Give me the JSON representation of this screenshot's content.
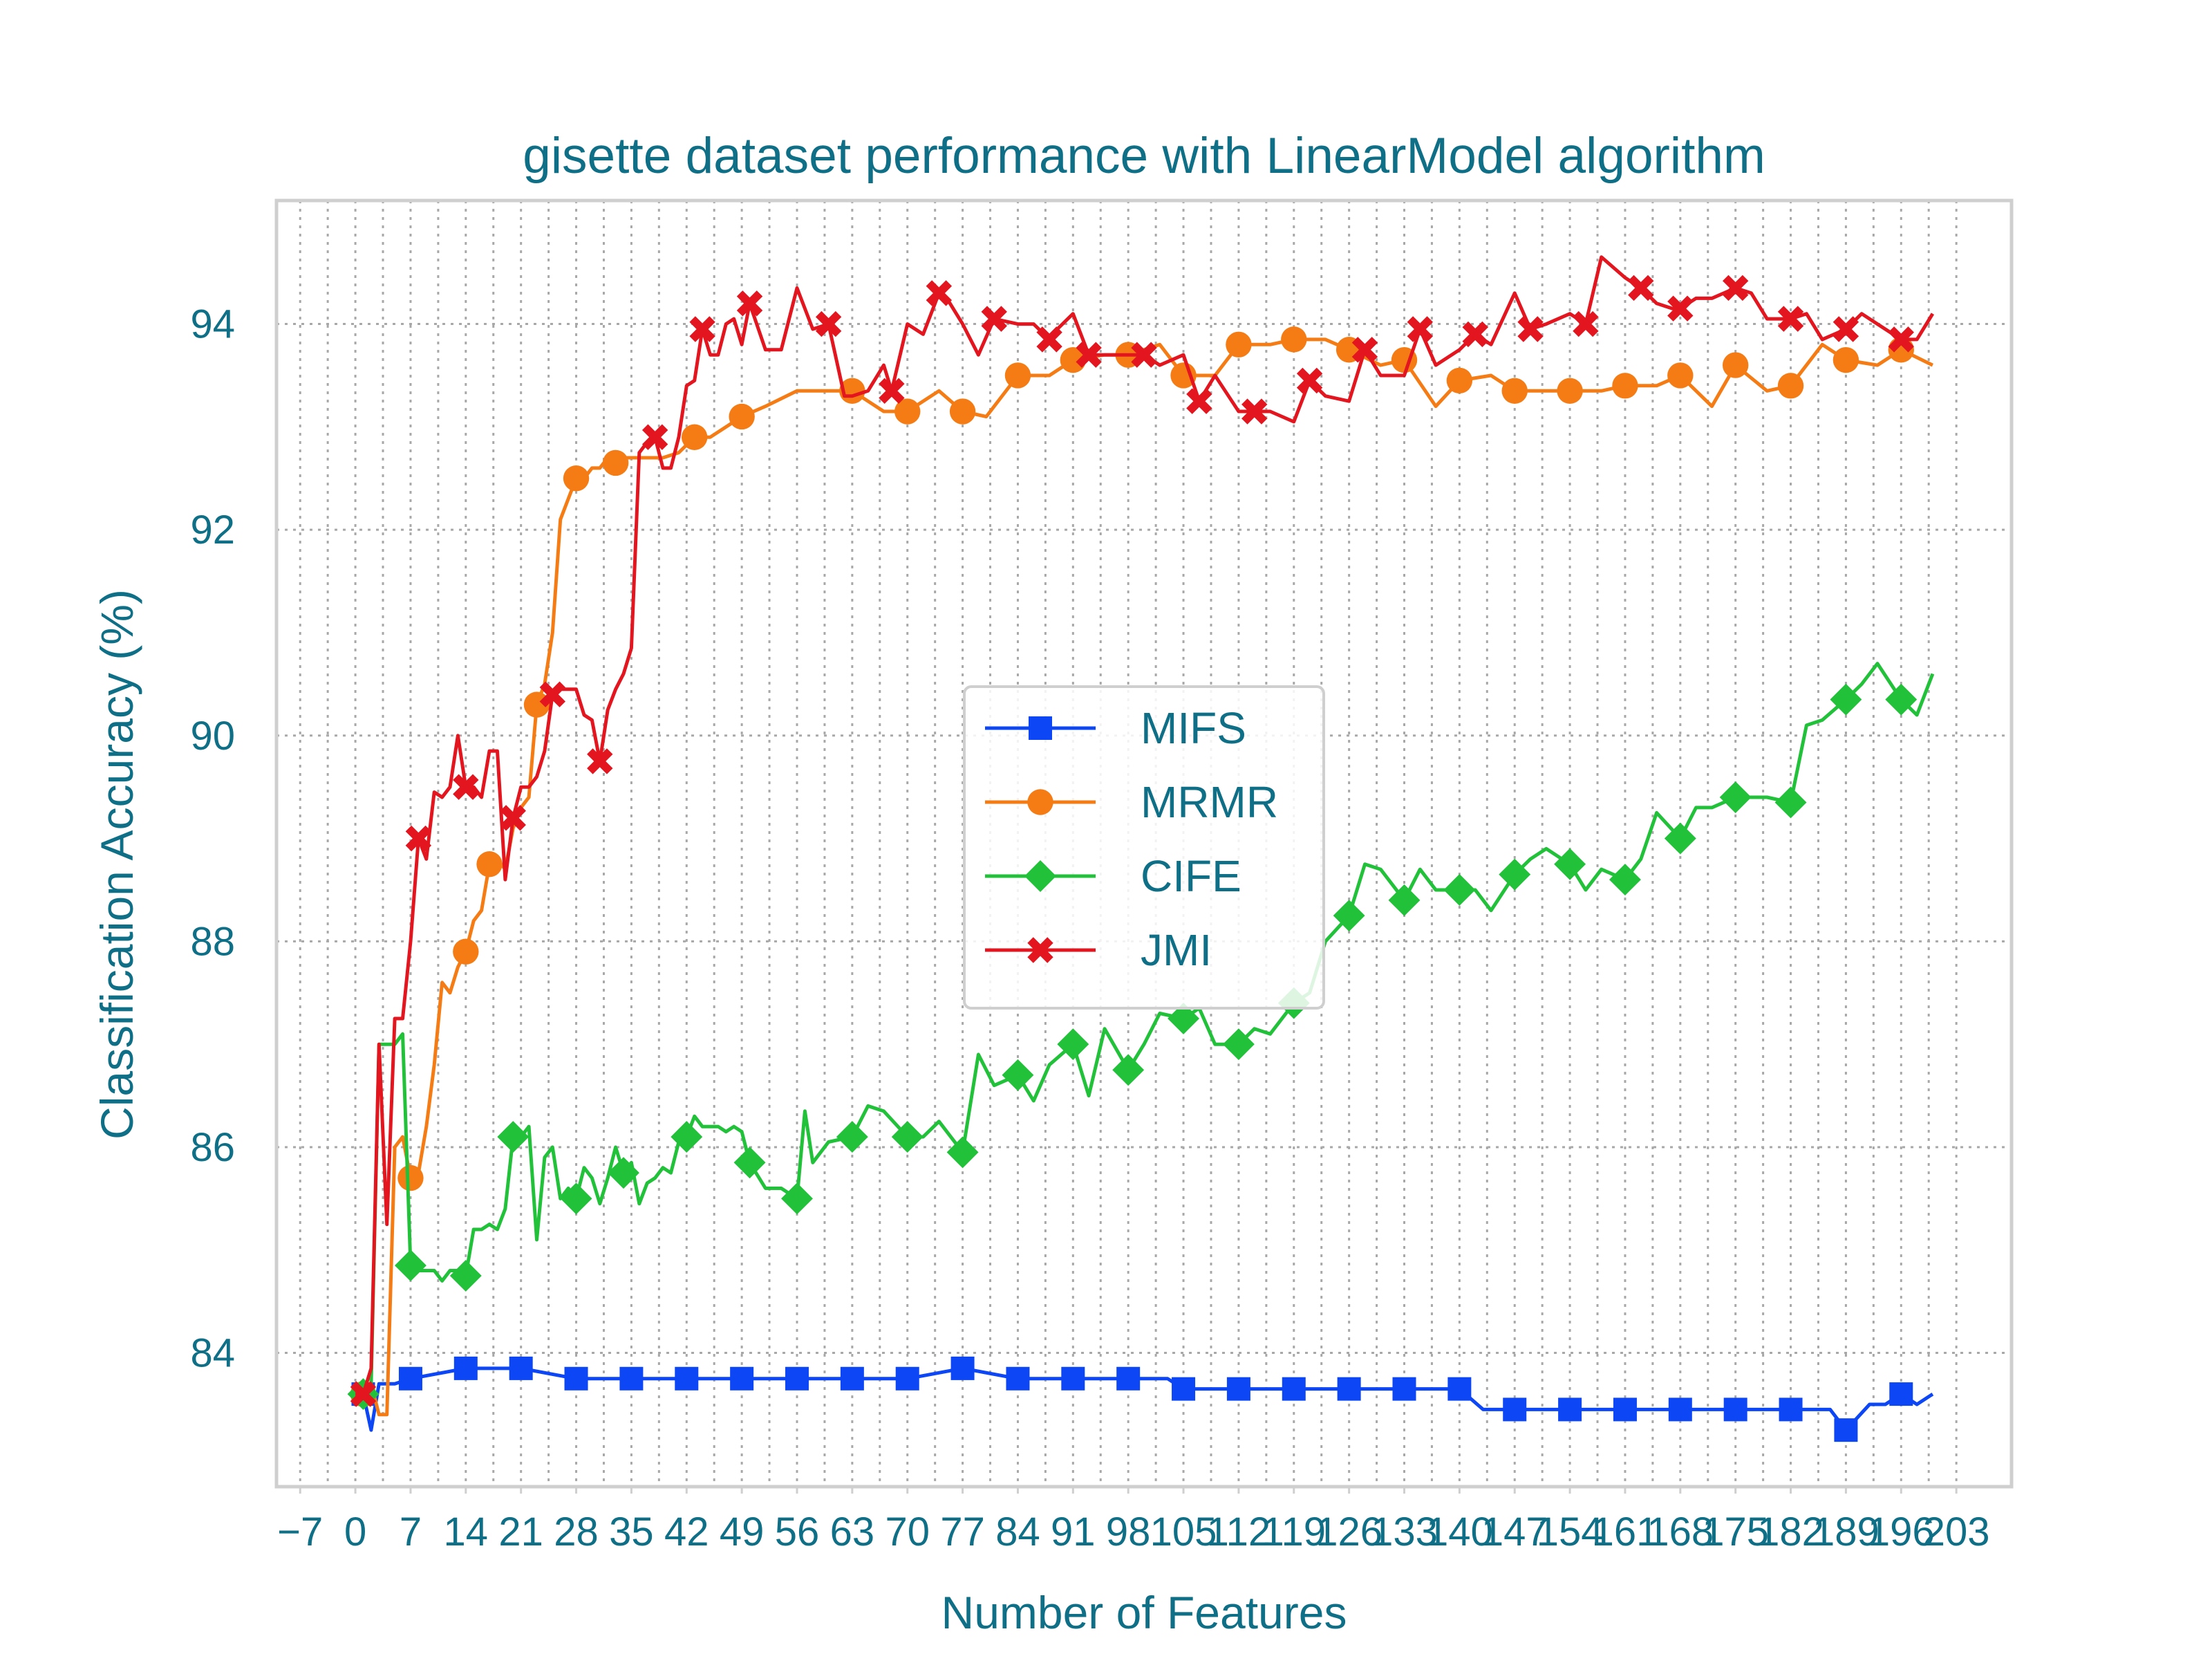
{
  "colors": {
    "text": "#0e6f86",
    "mifs": "#0d47f5",
    "mrmr": "#f57c14",
    "cife": "#21c13a",
    "jmi": "#e31620",
    "grid": "#a8a8a8",
    "frame": "#cfcfcf"
  },
  "chart_data": {
    "type": "line",
    "title": "gisette dataset performance with LinearModel algorithm",
    "xlabel": "Number of Features",
    "ylabel": "Classification Accuracy (%)",
    "xlim": [
      -10,
      210
    ],
    "ylim": [
      82.7,
      95.2
    ],
    "grid": true,
    "grid_style": "dotted",
    "legend_position": "center",
    "xticks": [
      -7,
      0,
      7,
      14,
      21,
      28,
      35,
      42,
      49,
      56,
      63,
      70,
      77,
      84,
      91,
      98,
      105,
      112,
      119,
      126,
      133,
      140,
      147,
      154,
      161,
      168,
      175,
      182,
      189,
      196,
      203
    ],
    "xtick_labels": [
      "−7",
      "0",
      "7",
      "14",
      "21",
      "28",
      "35",
      "42",
      "49",
      "56",
      "63",
      "70",
      "77",
      "84",
      "91",
      "98",
      "105",
      "112",
      "119",
      "126",
      "133",
      "140",
      "147",
      "154",
      "161",
      "168",
      "175",
      "182",
      "189",
      "196",
      "203"
    ],
    "yticks": [
      84,
      86,
      88,
      90,
      92,
      94
    ],
    "ytick_labels": [
      "84",
      "86",
      "88",
      "90",
      "92",
      "94"
    ],
    "series": [
      {
        "name": "MIFS",
        "color_key": "mifs",
        "marker": "square",
        "x": [
          0,
          1,
          2,
          3,
          4,
          5,
          7,
          14,
          21,
          28,
          35,
          42,
          49,
          56,
          63,
          70,
          77,
          84,
          91,
          98,
          103,
          105,
          112,
          119,
          126,
          133,
          140,
          143,
          147,
          154,
          161,
          168,
          175,
          182,
          187,
          189,
          192,
          194,
          196,
          198,
          200
        ],
        "y": [
          83.6,
          83.6,
          83.25,
          83.7,
          83.7,
          83.7,
          83.75,
          83.85,
          83.85,
          83.75,
          83.75,
          83.75,
          83.75,
          83.75,
          83.75,
          83.75,
          83.85,
          83.75,
          83.75,
          83.75,
          83.75,
          83.65,
          83.65,
          83.65,
          83.65,
          83.65,
          83.65,
          83.45,
          83.45,
          83.45,
          83.45,
          83.45,
          83.45,
          83.45,
          83.45,
          83.25,
          83.5,
          83.5,
          83.6,
          83.5,
          83.6
        ],
        "marker_indices": [
          1,
          6,
          7,
          8,
          9,
          10,
          11,
          12,
          13,
          14,
          15,
          16,
          17,
          18,
          19,
          21,
          22,
          23,
          24,
          25,
          26,
          28,
          29,
          30,
          31,
          32,
          33,
          35,
          38
        ]
      },
      {
        "name": "MRMR",
        "color_key": "mrmr",
        "marker": "circle",
        "x": [
          0,
          1,
          2,
          3,
          4,
          5,
          6,
          7,
          8,
          9,
          10,
          11,
          12,
          13,
          14,
          15,
          16,
          17,
          18,
          19,
          20,
          21,
          22,
          23,
          24,
          25,
          26,
          27,
          28,
          29,
          30,
          31,
          32,
          33,
          34,
          35,
          37,
          39,
          41,
          43,
          45,
          47,
          49,
          52,
          56,
          60,
          63,
          67,
          70,
          74,
          77,
          80,
          84,
          88,
          91,
          95,
          98,
          102,
          105,
          109,
          112,
          116,
          119,
          123,
          126,
          130,
          133,
          137,
          140,
          144,
          147,
          151,
          154,
          158,
          161,
          165,
          168,
          172,
          175,
          179,
          182,
          186,
          189,
          193,
          196,
          200
        ],
        "y": [
          83.6,
          83.6,
          83.7,
          83.4,
          83.4,
          86.0,
          86.1,
          85.7,
          85.75,
          86.2,
          86.8,
          87.6,
          87.5,
          87.75,
          87.9,
          88.2,
          88.3,
          88.75,
          88.8,
          88.7,
          89.1,
          89.3,
          89.4,
          90.3,
          90.5,
          91.0,
          92.1,
          92.3,
          92.5,
          92.5,
          92.6,
          92.6,
          92.7,
          92.65,
          92.7,
          92.7,
          92.7,
          92.7,
          92.75,
          92.9,
          92.9,
          93.0,
          93.1,
          93.2,
          93.35,
          93.35,
          93.35,
          93.15,
          93.15,
          93.35,
          93.15,
          93.1,
          93.5,
          93.5,
          93.65,
          93.7,
          93.7,
          93.8,
          93.5,
          93.5,
          93.8,
          93.8,
          93.85,
          93.85,
          93.75,
          93.6,
          93.65,
          93.2,
          93.45,
          93.5,
          93.35,
          93.35,
          93.35,
          93.35,
          93.4,
          93.4,
          93.5,
          93.2,
          93.6,
          93.35,
          93.4,
          93.8,
          93.65,
          93.6,
          93.75,
          93.6
        ],
        "marker_indices": [
          1,
          7,
          14,
          17,
          23,
          28,
          33,
          39,
          42,
          46,
          48,
          50,
          52,
          54,
          56,
          58,
          60,
          62,
          64,
          66,
          68,
          70,
          72,
          74,
          76,
          78,
          80,
          82,
          84
        ]
      },
      {
        "name": "CIFE",
        "color_key": "cife",
        "marker": "diamond",
        "x": [
          0,
          1,
          2,
          3,
          4,
          5,
          6,
          7,
          8,
          9,
          10,
          11,
          12,
          13,
          14,
          15,
          16,
          17,
          18,
          19,
          20,
          21,
          22,
          23,
          24,
          25,
          26,
          27,
          28,
          29,
          30,
          31,
          32,
          33,
          34,
          35,
          36,
          37,
          38,
          39,
          40,
          41,
          42,
          43,
          44,
          45,
          46,
          47,
          48,
          49,
          50,
          52,
          54,
          56,
          57,
          58,
          60,
          63,
          65,
          67,
          70,
          72,
          74,
          77,
          79,
          81,
          84,
          86,
          88,
          91,
          93,
          95,
          98,
          100,
          102,
          105,
          107,
          109,
          112,
          114,
          116,
          119,
          121,
          123,
          126,
          128,
          130,
          133,
          135,
          137,
          140,
          142,
          144,
          147,
          149,
          151,
          154,
          156,
          158,
          161,
          163,
          165,
          168,
          170,
          172,
          175,
          177,
          179,
          182,
          184,
          186,
          189,
          191,
          193,
          196,
          198,
          200
        ],
        "y": [
          83.6,
          83.6,
          83.7,
          87.0,
          87.0,
          87.0,
          87.1,
          84.85,
          84.8,
          84.8,
          84.8,
          84.7,
          84.8,
          84.8,
          84.75,
          85.2,
          85.2,
          85.25,
          85.2,
          85.4,
          86.1,
          86.1,
          86.2,
          85.1,
          85.9,
          86.0,
          85.5,
          85.6,
          85.5,
          85.8,
          85.7,
          85.45,
          85.7,
          86.0,
          85.75,
          85.85,
          85.45,
          85.65,
          85.7,
          85.8,
          85.75,
          86.05,
          86.1,
          86.3,
          86.2,
          86.2,
          86.2,
          86.15,
          86.2,
          86.15,
          85.85,
          85.6,
          85.6,
          85.5,
          86.35,
          85.85,
          86.05,
          86.1,
          86.4,
          86.35,
          86.1,
          86.1,
          86.25,
          85.95,
          86.9,
          86.6,
          86.7,
          86.45,
          86.8,
          87.0,
          86.5,
          87.15,
          86.75,
          87.0,
          87.3,
          87.25,
          87.35,
          87.0,
          87.0,
          87.15,
          87.1,
          87.4,
          87.5,
          88.0,
          88.25,
          88.75,
          88.7,
          88.4,
          88.7,
          88.5,
          88.5,
          88.5,
          88.3,
          88.65,
          88.8,
          88.9,
          88.75,
          88.5,
          88.7,
          88.6,
          88.8,
          89.25,
          89.0,
          89.3,
          89.3,
          89.4,
          89.4,
          89.4,
          89.35,
          90.1,
          90.15,
          90.35,
          90.5,
          90.7,
          90.35,
          90.2,
          90.6
        ],
        "marker_indices": [
          1,
          7,
          14,
          20,
          28,
          34,
          42,
          50,
          53,
          57,
          60,
          63,
          66,
          69,
          72,
          75,
          78,
          81,
          84,
          87,
          90,
          93,
          96,
          99,
          102,
          105,
          108,
          111,
          114
        ]
      },
      {
        "name": "JMI",
        "color_key": "jmi",
        "marker": "x",
        "x": [
          0,
          1,
          2,
          3,
          4,
          5,
          6,
          7,
          8,
          9,
          10,
          11,
          12,
          13,
          14,
          15,
          16,
          17,
          18,
          19,
          20,
          21,
          22,
          23,
          24,
          25,
          26,
          27,
          28,
          29,
          30,
          31,
          32,
          33,
          34,
          35,
          36,
          37,
          38,
          39,
          40,
          41,
          42,
          43,
          44,
          45,
          46,
          47,
          48,
          49,
          50,
          52,
          54,
          56,
          58,
          60,
          62,
          63,
          65,
          67,
          68,
          70,
          72,
          74,
          75,
          77,
          79,
          81,
          84,
          86,
          88,
          89,
          91,
          93,
          95,
          98,
          100,
          102,
          105,
          107,
          109,
          112,
          114,
          116,
          119,
          121,
          123,
          126,
          128,
          130,
          133,
          135,
          137,
          140,
          142,
          144,
          147,
          149,
          151,
          154,
          156,
          158,
          161,
          163,
          165,
          167,
          168,
          170,
          172,
          175,
          177,
          179,
          182,
          184,
          186,
          189,
          191,
          193,
          196,
          198,
          200
        ],
        "y": [
          83.6,
          83.6,
          83.85,
          87.0,
          85.25,
          87.25,
          87.25,
          88.0,
          89.0,
          88.8,
          89.45,
          89.4,
          89.5,
          90.0,
          89.5,
          89.5,
          89.4,
          89.85,
          89.85,
          88.6,
          89.2,
          89.5,
          89.5,
          89.6,
          89.85,
          90.4,
          90.45,
          90.45,
          90.45,
          90.2,
          90.15,
          89.75,
          90.25,
          90.45,
          90.6,
          90.85,
          92.75,
          92.85,
          92.9,
          92.6,
          92.6,
          92.9,
          93.4,
          93.45,
          93.95,
          93.7,
          93.7,
          94.0,
          94.05,
          93.8,
          94.2,
          93.75,
          93.75,
          94.35,
          93.95,
          94.0,
          93.3,
          93.3,
          93.35,
          93.6,
          93.35,
          94.0,
          93.9,
          94.3,
          94.25,
          94.0,
          93.7,
          94.05,
          94.0,
          94.0,
          93.85,
          93.95,
          94.1,
          93.7,
          93.7,
          93.7,
          93.7,
          93.6,
          93.7,
          93.25,
          93.5,
          93.15,
          93.15,
          93.15,
          93.05,
          93.45,
          93.3,
          93.25,
          93.75,
          93.5,
          93.5,
          93.95,
          93.6,
          93.75,
          93.9,
          93.8,
          94.3,
          93.95,
          94.0,
          94.1,
          94.0,
          94.65,
          94.45,
          94.35,
          94.2,
          94.15,
          94.15,
          94.25,
          94.25,
          94.35,
          94.3,
          94.05,
          94.05,
          94.1,
          93.85,
          93.95,
          94.1,
          94.0,
          93.85,
          93.85,
          94.1
        ],
        "marker_indices": [
          1,
          8,
          14,
          20,
          25,
          31,
          38,
          44,
          50,
          55,
          60,
          63,
          67,
          70,
          73,
          76,
          79,
          82,
          85,
          88,
          91,
          94,
          97,
          100,
          103,
          106,
          109,
          112,
          115,
          118
        ]
      }
    ]
  }
}
